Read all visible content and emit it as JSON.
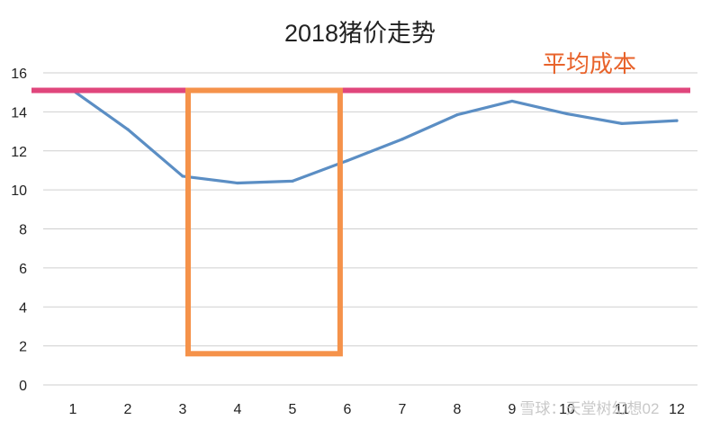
{
  "chart_data": {
    "type": "line",
    "title": "2018猪价走势",
    "xlabel": "",
    "ylabel": "",
    "categories": [
      "1",
      "2",
      "3",
      "4",
      "5",
      "6",
      "7",
      "8",
      "9",
      "10",
      "11",
      "12"
    ],
    "series": [
      {
        "name": "",
        "color": "#5b8ec4",
        "values": [
          15.1,
          13.1,
          10.7,
          10.35,
          10.45,
          11.5,
          12.6,
          13.85,
          14.55,
          13.9,
          13.4,
          13.55
        ]
      }
    ],
    "ylim": [
      0,
      16
    ],
    "yticks": [
      "0",
      "2",
      "4",
      "6",
      "8",
      "10",
      "12",
      "14",
      "16"
    ],
    "grid": "horizontal",
    "reference_line": {
      "label": "平均成本",
      "value": 15.1,
      "color": "#e0467c",
      "label_color": "#e8632b"
    },
    "highlight_box": {
      "x_from": 3,
      "x_to": 5.9,
      "y_from": 1.6,
      "y_to": 15.1,
      "color": "#f5924a"
    },
    "watermark": "雪球：天堂树幻想02"
  }
}
